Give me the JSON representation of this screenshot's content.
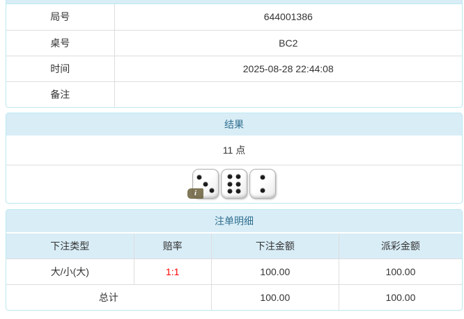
{
  "info_table": {
    "rows": [
      {
        "label": "局号",
        "value": "644001386"
      },
      {
        "label": "桌号",
        "value": "BC2"
      },
      {
        "label": "时间",
        "value": "2025-08-28 22:44:08"
      },
      {
        "label": "备注",
        "value": ""
      }
    ]
  },
  "result_panel": {
    "title": "结果",
    "points": "11 点",
    "dice": [
      3,
      6,
      2
    ],
    "info_badge": "i"
  },
  "bets_panel": {
    "title": "注单明细",
    "columns": [
      "下注类型",
      "赔率",
      "下注金额",
      "派彩金额"
    ],
    "rows": [
      {
        "bet_type": "大/小(大)",
        "odds": "1:1",
        "bet_amount": "100.00",
        "payout_amount": "100.00"
      }
    ],
    "total": {
      "label": "总计",
      "bet_amount": "100.00",
      "payout_amount": "100.00"
    }
  },
  "colors": {
    "panel_border": "#bce8f1",
    "header_bg": "#d9edf7",
    "header_text": "#31708f",
    "row_border": "#dddddd",
    "body_text": "#333333",
    "odds_red": "#ff0000"
  }
}
